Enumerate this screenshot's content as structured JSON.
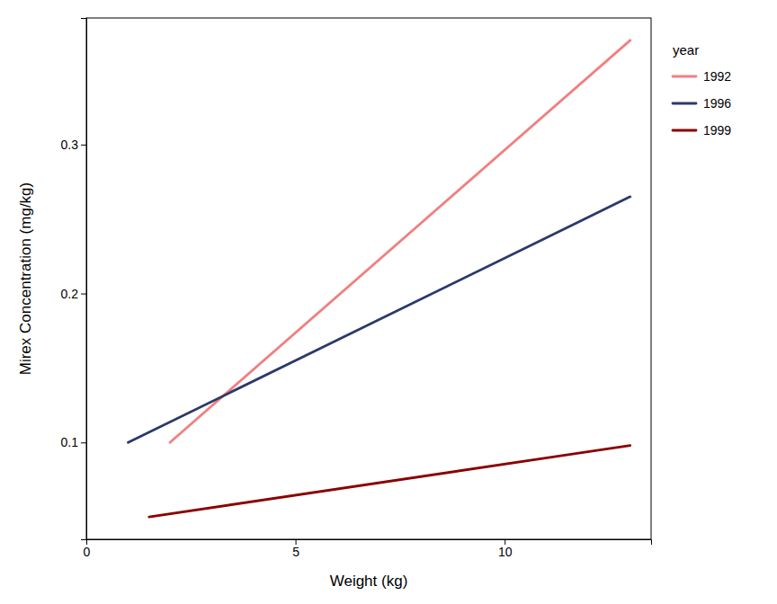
{
  "chart_data": {
    "type": "line",
    "xlabel": "Weight (kg)",
    "ylabel": "Mirex Concentration (mg/kg)",
    "legend_title": "year",
    "xlim": [
      0,
      13.5
    ],
    "ylim": [
      0.035,
      0.385
    ],
    "xticks": [
      0,
      5,
      10
    ],
    "yticks": [
      0.1,
      0.2,
      0.3
    ],
    "grid": false,
    "legend": "right",
    "series": [
      {
        "name": "1992",
        "color": "#F08080",
        "x": [
          2.0,
          13.0
        ],
        "values": [
          0.1,
          0.37
        ]
      },
      {
        "name": "1996",
        "color": "#2B3A6B",
        "x": [
          1.0,
          13.0
        ],
        "values": [
          0.1,
          0.265
        ]
      },
      {
        "name": "1999",
        "color": "#8B0000",
        "x": [
          1.5,
          13.0
        ],
        "values": [
          0.05,
          0.098
        ]
      }
    ]
  }
}
